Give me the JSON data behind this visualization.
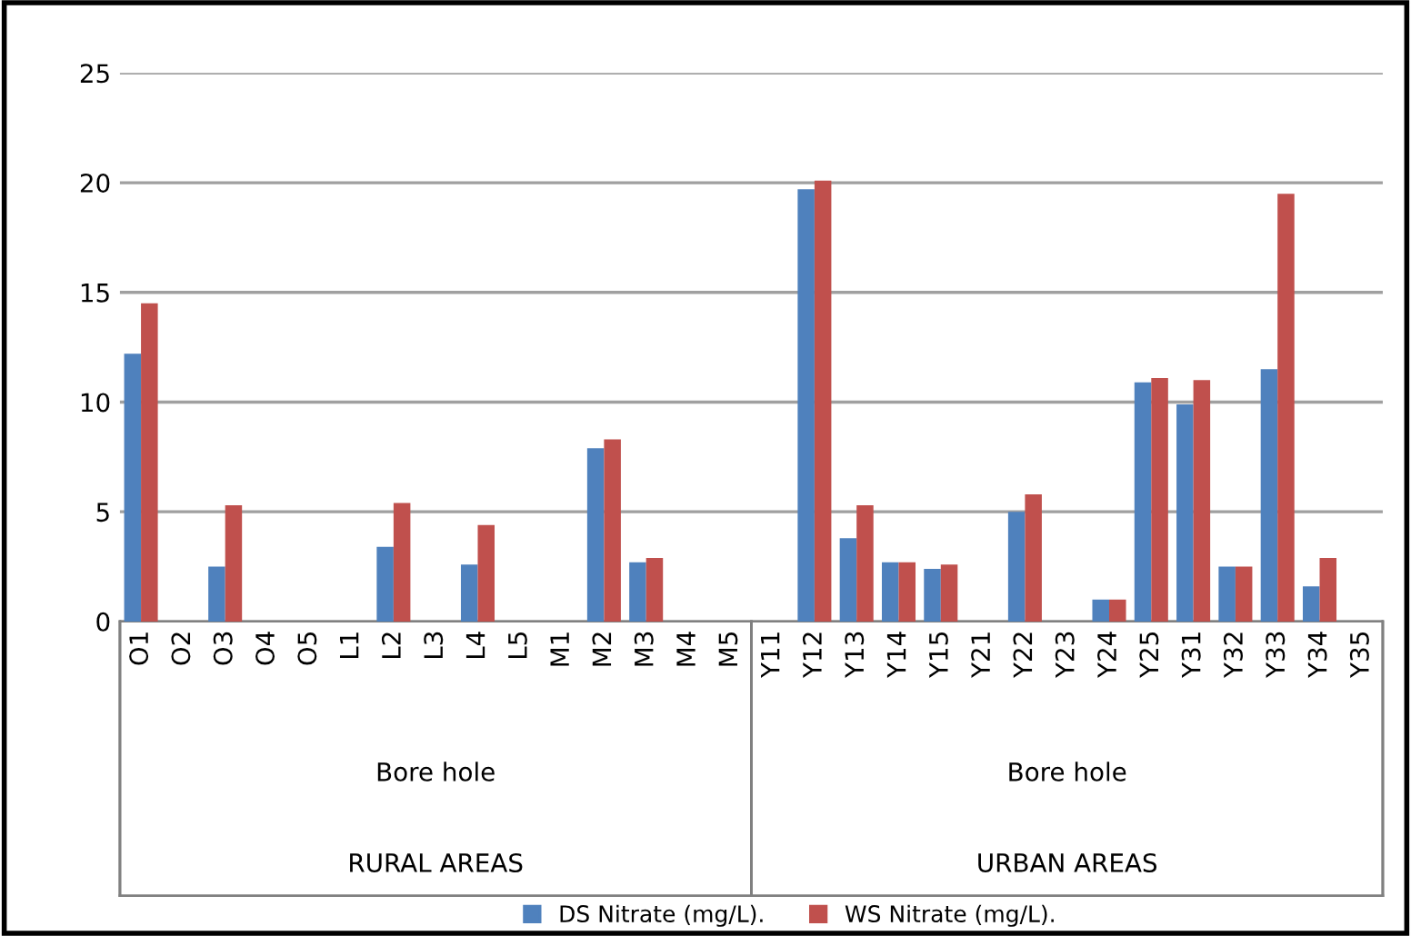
{
  "chart_data": {
    "type": "bar",
    "categories": [
      "O1",
      "O2",
      "O3",
      "O4",
      "O5",
      "L1",
      "L2",
      "L3",
      "L4",
      "L5",
      "M1",
      "M2",
      "M3",
      "M4",
      "M5",
      "Y11",
      "Y12",
      "Y13",
      "Y14",
      "Y15",
      "Y21",
      "Y22",
      "Y23",
      "Y24",
      "Y25",
      "Y31",
      "Y32",
      "Y33",
      "Y34",
      "Y35"
    ],
    "series": [
      {
        "name": "DS Nitrate (mg/L).",
        "color": "#4f81bd",
        "values": [
          12.2,
          0,
          2.5,
          0,
          0,
          0,
          3.4,
          0,
          2.6,
          0,
          0,
          7.9,
          2.7,
          0,
          0,
          0,
          19.7,
          3.8,
          2.7,
          2.4,
          0,
          5.0,
          0,
          1.0,
          10.9,
          9.9,
          2.5,
          11.5,
          1.6,
          0
        ]
      },
      {
        "name": "WS Nitrate (mg/L).",
        "color": "#c0504d",
        "values": [
          14.5,
          0,
          5.3,
          0,
          0,
          0,
          5.4,
          0,
          4.4,
          0,
          0,
          8.3,
          2.9,
          0,
          0,
          0,
          20.1,
          5.3,
          2.7,
          2.6,
          0,
          5.8,
          0,
          1.0,
          11.1,
          11.0,
          2.5,
          19.5,
          2.9,
          0
        ]
      }
    ],
    "annotations": [
      "Bore hole",
      "Bore hole",
      "RURAL AREAS",
      "URBAN AREAS"
    ],
    "ylim": [
      0,
      25
    ],
    "yticks": [
      0,
      5,
      10,
      15,
      20,
      25
    ],
    "grid": "y",
    "legend": "bottom"
  }
}
